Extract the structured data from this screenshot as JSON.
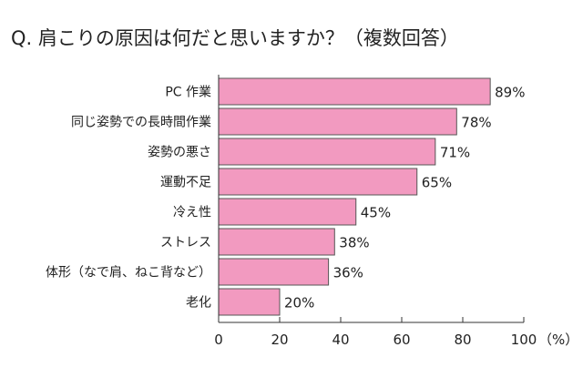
{
  "chart_data": {
    "type": "bar",
    "orientation": "horizontal",
    "title": "Q. 肩こりの原因は何だと思いますか？（複数回答）",
    "categories": [
      "PC 作業",
      "同じ姿勢での長時間作業",
      "姿勢の悪さ",
      "運動不足",
      "冷え性",
      "ストレス",
      "体形（なで肩、ねこ背など）",
      "老化"
    ],
    "values": [
      89,
      78,
      71,
      65,
      45,
      38,
      36,
      20
    ],
    "value_labels": [
      "89%",
      "78%",
      "71%",
      "65%",
      "45%",
      "38%",
      "36%",
      "20%"
    ],
    "xlim": [
      0,
      100
    ],
    "x_ticks": [
      "0",
      "20",
      "40",
      "60",
      "80",
      "100"
    ],
    "x_unit": "（%）",
    "bar_color": "#f29ac0",
    "grid": false
  }
}
